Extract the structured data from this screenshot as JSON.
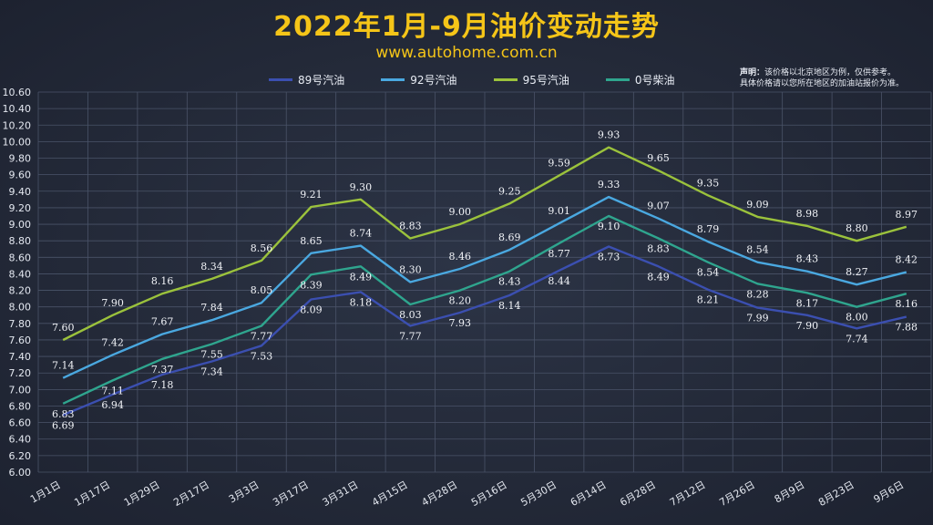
{
  "title": "2022年1月-9月油价变动走势",
  "subtitle": "www.autohome.com.cn",
  "note": {
    "prefix": "声明：",
    "line1": "该价格以北京地区为例，仅供参考。",
    "line2": "具体价格请以您所在地区的加油站报价为准。"
  },
  "chart_data": {
    "type": "line",
    "title": "2022年1月-9月油价变动走势",
    "categories": [
      "1月1日",
      "1月17日",
      "1月29日",
      "2月17日",
      "3月3日",
      "3月17日",
      "3月31日",
      "4月15日",
      "4月28日",
      "5月16日",
      "5月30日",
      "6月14日",
      "6月28日",
      "7月12日",
      "7月26日",
      "8月9日",
      "8月23日",
      "9月6日"
    ],
    "ylim": [
      6.0,
      10.6
    ],
    "ystep": 0.2,
    "grid": true,
    "legend": "top",
    "series": [
      {
        "name": "89号汽油",
        "color": "#3b4fb0",
        "values": [
          6.69,
          6.94,
          7.18,
          7.34,
          7.53,
          8.09,
          8.18,
          7.77,
          7.93,
          8.14,
          8.44,
          8.73,
          8.49,
          8.21,
          7.99,
          7.9,
          7.74,
          7.88
        ]
      },
      {
        "name": "92号汽油",
        "color": "#4aa8e0",
        "values": [
          7.14,
          7.42,
          7.67,
          7.84,
          8.05,
          8.65,
          8.74,
          8.3,
          8.46,
          8.69,
          9.01,
          9.33,
          9.07,
          8.79,
          8.54,
          8.43,
          8.27,
          8.42
        ]
      },
      {
        "name": "95号汽油",
        "color": "#9bc23c",
        "values": [
          7.6,
          7.9,
          8.16,
          8.34,
          8.56,
          9.21,
          9.3,
          8.83,
          9.0,
          9.25,
          9.59,
          9.93,
          9.65,
          9.35,
          9.09,
          8.98,
          8.8,
          8.97
        ]
      },
      {
        "name": "0号柴油",
        "color": "#2fa58e",
        "values": [
          6.83,
          7.11,
          7.37,
          7.55,
          7.77,
          8.39,
          8.49,
          8.03,
          8.2,
          8.43,
          8.77,
          9.1,
          8.83,
          8.54,
          8.28,
          8.17,
          8.0,
          8.16
        ]
      }
    ]
  }
}
